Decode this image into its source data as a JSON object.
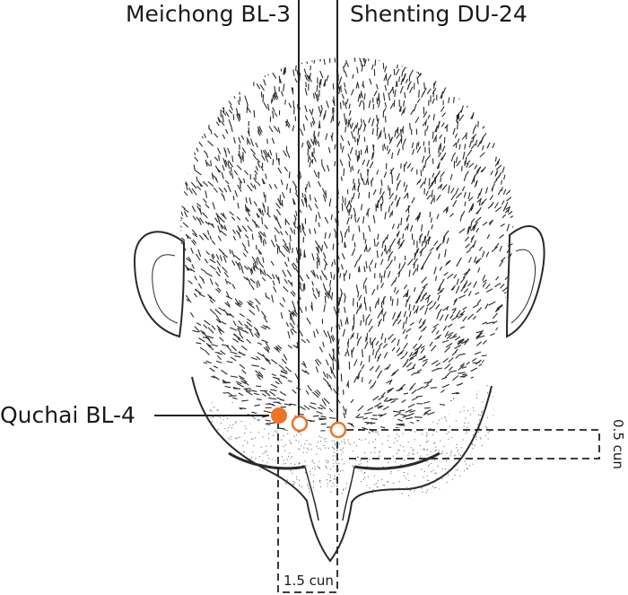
{
  "labels": {
    "meichong": "Meichong BL-3",
    "shenting": "Shenting DU-24",
    "quchai": "Quchai BL-4",
    "vertical_measure": "0.5 cun",
    "horizontal_measure": "1.5 cun"
  },
  "colors": {
    "point_fill": "#ee7325",
    "point_outline": "#ee7325",
    "line": "#222222",
    "hair": "#2a2a2a",
    "skin_stipple": "#5a5a5a"
  },
  "points": [
    {
      "id": "quchai",
      "style": "filled"
    },
    {
      "id": "meichong",
      "style": "open"
    },
    {
      "id": "shenting",
      "style": "open"
    }
  ]
}
